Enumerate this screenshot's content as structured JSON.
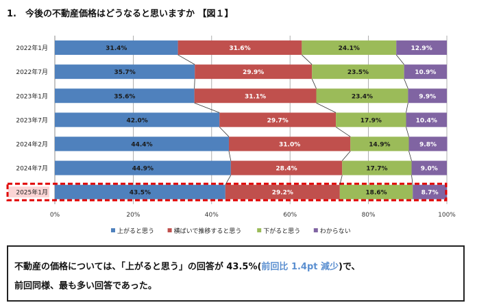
{
  "title": "1.　今後の不動産価格はどうなると思いますか 【図１】",
  "chart_data": {
    "type": "bar",
    "orientation": "horizontal",
    "stacked": true,
    "percent": true,
    "categories": [
      "2022年1月",
      "2022年7月",
      "2023年1月",
      "2023年7月",
      "2024年2月",
      "2024年7月",
      "2025年1月"
    ],
    "series": [
      {
        "name": "上がると思う",
        "color": "#4f81bd",
        "label_color": "#1a1a1a",
        "values": [
          31.4,
          35.7,
          35.6,
          42.0,
          44.4,
          44.9,
          43.5
        ]
      },
      {
        "name": "横ばいで推移すると思う",
        "color": "#c0504d",
        "label_color": "#ffffff",
        "values": [
          31.6,
          29.9,
          31.1,
          29.7,
          31.0,
          28.4,
          29.2
        ]
      },
      {
        "name": "下がると思う",
        "color": "#9bbb59",
        "label_color": "#1a1a1a",
        "values": [
          24.1,
          23.5,
          23.4,
          17.9,
          14.9,
          17.7,
          18.6
        ]
      },
      {
        "name": "わからない",
        "color": "#8064a2",
        "label_color": "#ffffff",
        "values": [
          12.9,
          10.9,
          9.9,
          10.4,
          9.8,
          9.0,
          8.7
        ]
      }
    ],
    "xlim": [
      0,
      100
    ],
    "xticks": [
      "0%",
      "20%",
      "40%",
      "60%",
      "80%",
      "100%"
    ],
    "grid": true,
    "legend": "bottom",
    "highlighted_category": "2025年1月",
    "highlight_color": "#e00000"
  },
  "note": {
    "line1_pre": "不動産の価格については、「上がると思う」の回答が 43.5%(",
    "line1_hl": "前回比 1.4pt 減少",
    "line1_post": ")で、",
    "line2": "前回同様、最も多い回答であった。"
  }
}
